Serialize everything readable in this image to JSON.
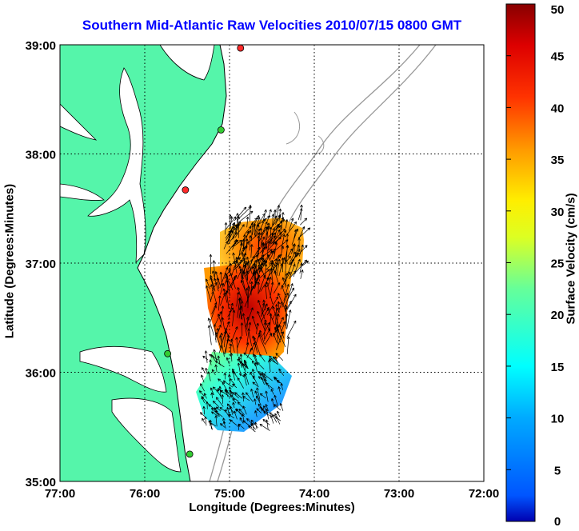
{
  "map": {
    "title": "Southern Mid-Atlantic Raw Velocities 2010/07/15 0800 GMT",
    "xlabel": "Longitude (Degrees:Minutes)",
    "ylabel": "Latitude (Degrees:Minutes)",
    "x_ticks": [
      "77:00",
      "76:00",
      "75:00",
      "74:00",
      "73:00",
      "72:00"
    ],
    "y_ticks": [
      "39:00",
      "38:00",
      "37:00",
      "36:00",
      "35:00"
    ],
    "lon_range": [
      -77,
      -72
    ],
    "lat_range": [
      35,
      39
    ],
    "land_color": "#55f5aa",
    "water_color": "#ffffff",
    "grid": true
  },
  "colorbar": {
    "label": "Surface Velocity (cm/s)",
    "ticks": [
      "50",
      "45",
      "40",
      "35",
      "30",
      "25",
      "20",
      "15",
      "10",
      "5",
      "0"
    ],
    "range": [
      0,
      50
    ],
    "colormap": "jet"
  },
  "stations": [
    {
      "lon": -74.87,
      "lat": 38.97,
      "color": "#ff2a2a"
    },
    {
      "lon": -75.1,
      "lat": 38.22,
      "color": "#33cc33"
    },
    {
      "lon": -75.52,
      "lat": 37.67,
      "color": "#ff2a2a"
    },
    {
      "lon": -75.73,
      "lat": 36.17,
      "color": "#33cc33"
    },
    {
      "lon": -75.47,
      "lat": 35.25,
      "color": "#33cc33"
    }
  ]
}
